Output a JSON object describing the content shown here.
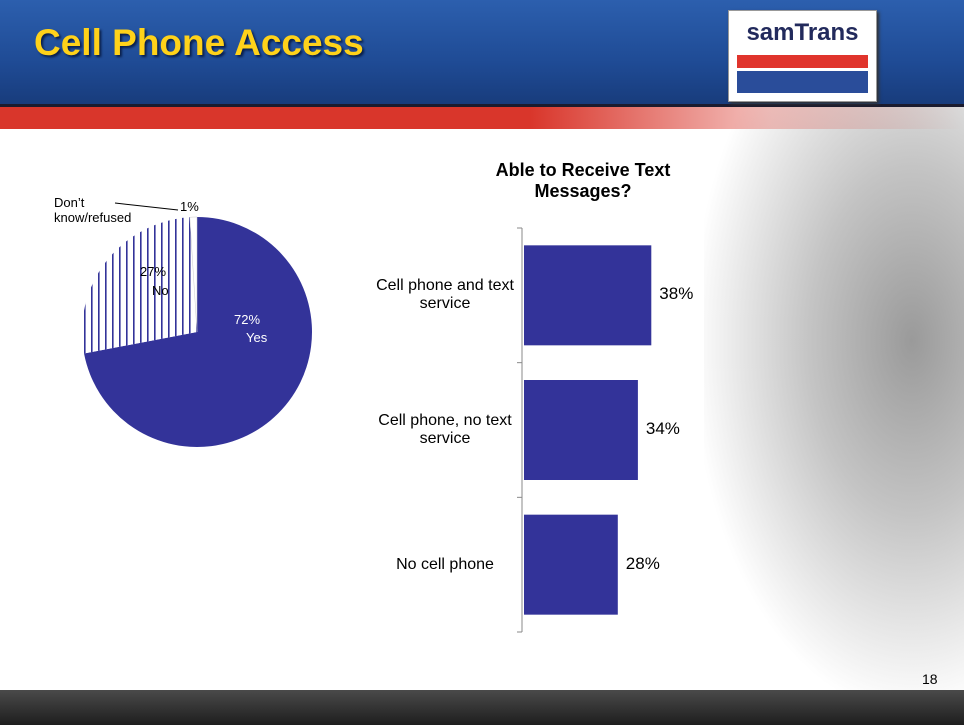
{
  "title": "Cell Phone Access",
  "logo": "samTrans",
  "page_number": "18",
  "chart_data": [
    {
      "type": "pie",
      "categories": [
        "Yes",
        "No",
        "Don’t know/refused"
      ],
      "values": [
        72,
        27,
        1
      ],
      "value_labels": [
        "72%",
        "27%",
        "1%"
      ],
      "colors": [
        "#333399",
        "striped",
        "#ffffff"
      ]
    },
    {
      "type": "bar",
      "orientation": "horizontal",
      "title": "Able to Receive Text Messages?",
      "categories": [
        "Cell phone and text service",
        "Cell phone, no text service",
        "No cell phone"
      ],
      "values": [
        38,
        34,
        28
      ],
      "value_labels": [
        "38%",
        "34%",
        "28%"
      ],
      "color": "#333399"
    }
  ]
}
